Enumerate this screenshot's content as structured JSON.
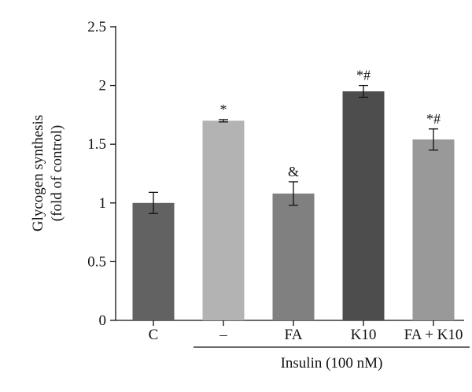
{
  "chart_data": {
    "type": "bar",
    "ylabel_line1": "Glycogen synthesis",
    "ylabel_line2": "(fold of control)",
    "ylim": [
      0,
      2.5
    ],
    "yticks": [
      "0",
      "0.5",
      "1",
      "1.5",
      "2",
      "2.5"
    ],
    "categories": [
      "C",
      "–",
      "FA",
      "K10",
      "FA + K10"
    ],
    "values": [
      1.0,
      1.7,
      1.08,
      1.95,
      1.54
    ],
    "errors": [
      0.09,
      0.01,
      0.1,
      0.05,
      0.09
    ],
    "annotations": [
      "",
      "*",
      "&",
      "*#",
      "*#"
    ],
    "colors": [
      "#626262",
      "#b3b3b3",
      "#808080",
      "#4d4d4d",
      "#999999"
    ],
    "group_label": "Insulin (100 nM)",
    "grid": false,
    "legend": "none"
  }
}
